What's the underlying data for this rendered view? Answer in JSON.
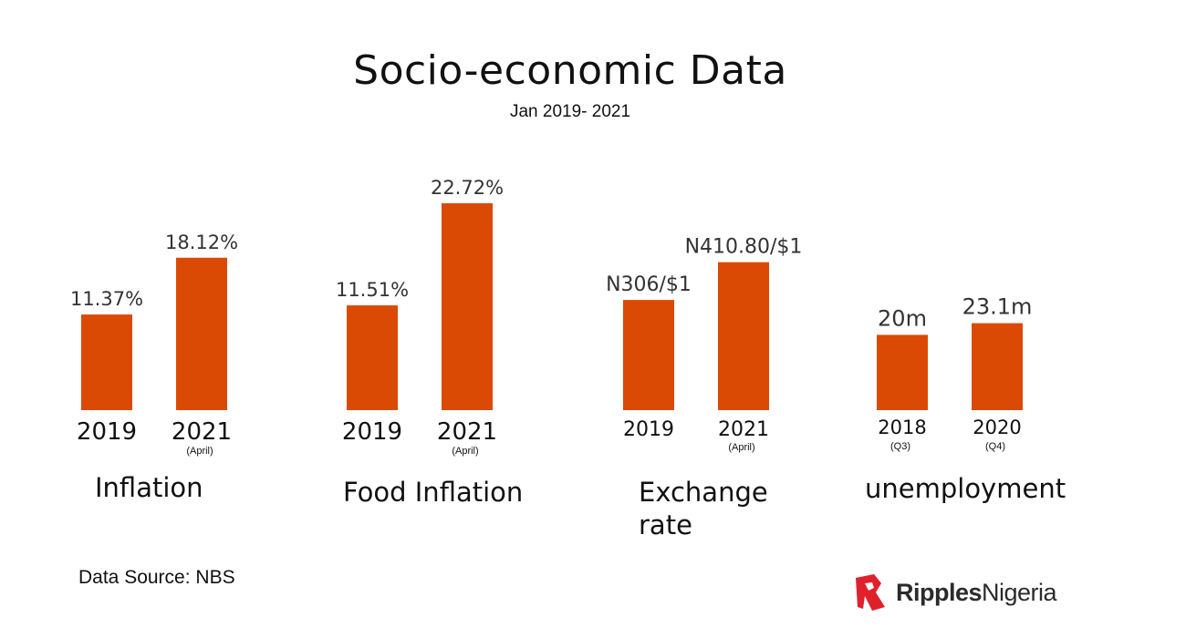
{
  "title": "Socio-economic Data",
  "subtitle": "Jan 2019- 2021",
  "source": "Data Source: NBS",
  "logo": {
    "bold": "Ripples",
    "regular": "Nigeria"
  },
  "colors": {
    "bar": "#DB4A04",
    "text": "#111111",
    "logo_red": "#E0202A"
  },
  "chart_data": [
    {
      "type": "bar",
      "group_label": "Inflation",
      "categories": [
        "2019",
        "2021"
      ],
      "category_notes": [
        "",
        "(April)"
      ],
      "values": [
        11.37,
        18.12
      ],
      "data_labels": [
        "11.37%",
        "18.12%"
      ]
    },
    {
      "type": "bar",
      "group_label": "Food Inflation",
      "categories": [
        "2019",
        "2021"
      ],
      "category_notes": [
        "",
        "(April)"
      ],
      "values": [
        11.51,
        22.72
      ],
      "data_labels": [
        "11.51%",
        "22.72%"
      ]
    },
    {
      "type": "bar",
      "group_label": "Exchange rate",
      "group_label_lines": [
        "Exchange",
        "rate"
      ],
      "categories": [
        "2019",
        "2021"
      ],
      "category_notes": [
        "",
        "(April)"
      ],
      "values": [
        306,
        410.8
      ],
      "data_labels": [
        "N306/$1",
        "N410.80/$1"
      ]
    },
    {
      "type": "bar",
      "group_label": "unemployment",
      "categories": [
        "2018",
        "2020"
      ],
      "category_notes": [
        "(Q3)",
        "(Q4)"
      ],
      "values": [
        20,
        23.1
      ],
      "data_labels": [
        "20m",
        "23.1m"
      ]
    }
  ]
}
